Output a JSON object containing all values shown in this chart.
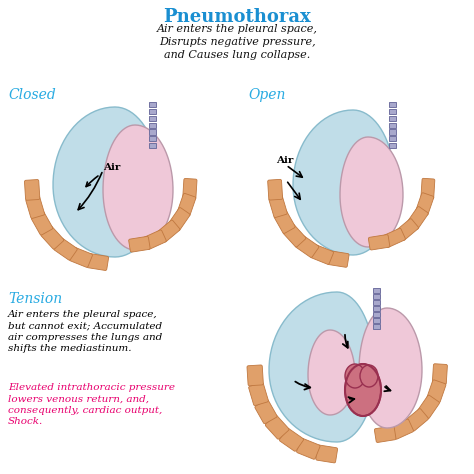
{
  "title": "Pneumothorax",
  "title_color": "#1A8FD1",
  "subtitle": "Air enters the pleural space,\nDisrupts negative pressure,\nand Causes lung collapse.",
  "subtitle_color": "#111111",
  "label_closed": "Closed",
  "label_open": "Open",
  "label_tension": "Tension",
  "label_color": "#29ABE2",
  "tension_black_text": "Air enters the pleural space,\nbut cannot exit; Accumulated\nair compresses the lungs and\nshifts the mediastinum.",
  "tension_red_text": "Elevated intrathoracic pressure\nlowers venous return, and,\nconsequently, cardiac output,\nShock.",
  "tension_red_color": "#E8006E",
  "bg_color": "#FFFFFF",
  "lung_pink": "#EFC8D8",
  "lung_blue": "#C0DDE8",
  "rib_orange": "#E0A06A",
  "rib_edge": "#C07840",
  "trachea_fill": "#A8A8CC",
  "trachea_edge": "#7070A0",
  "heart_fill": "#CC7080",
  "heart_edge": "#993050"
}
